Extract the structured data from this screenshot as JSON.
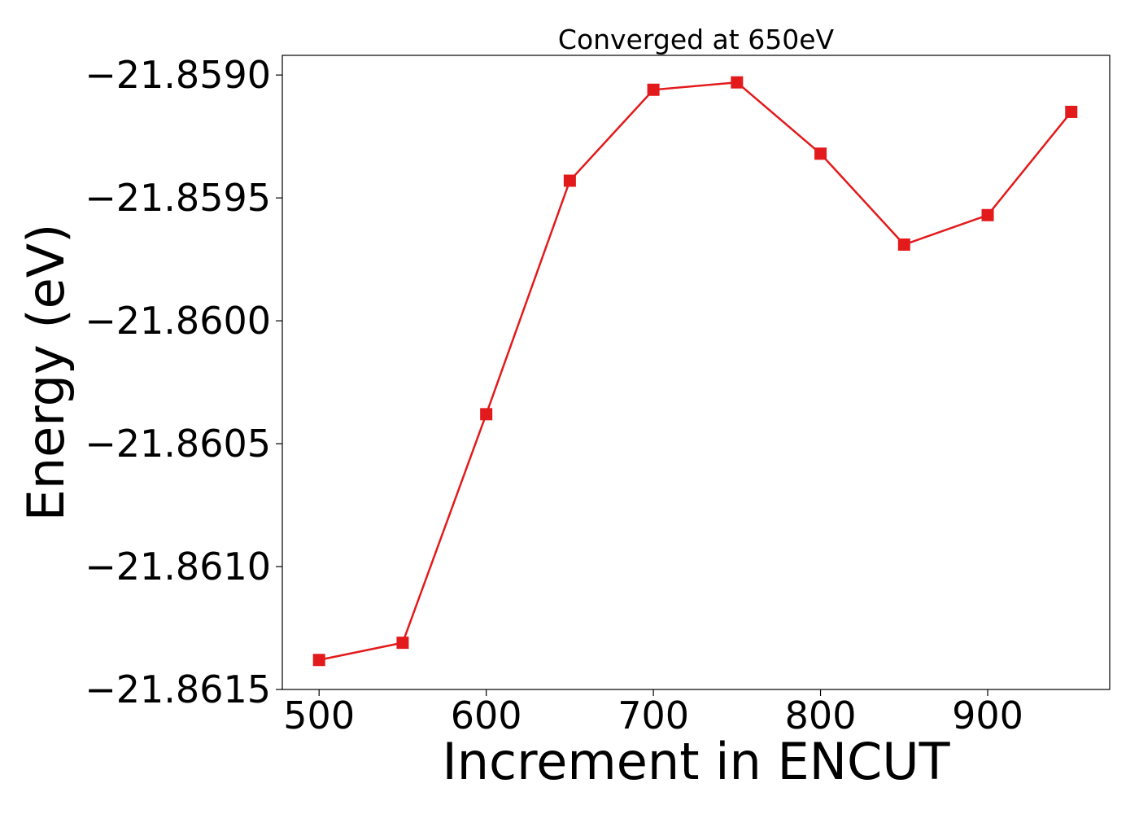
{
  "chart_data": {
    "type": "line",
    "title": "Converged at 650eV",
    "xlabel": "Increment in ENCUT",
    "ylabel": "Energy (eV)",
    "x": [
      500,
      550,
      600,
      650,
      700,
      750,
      800,
      850,
      900,
      950
    ],
    "series": [
      {
        "values": [
          -21.86138,
          -21.86131,
          -21.86038,
          -21.85943,
          -21.85906,
          -21.85903,
          -21.85932,
          -21.85969,
          -21.85957,
          -21.85915
        ]
      }
    ],
    "xlim": [
      478,
      973
    ],
    "ylim": [
      -21.8615,
      -21.85892
    ],
    "xticks": [
      500,
      600,
      700,
      800,
      900
    ],
    "xtick_labels": [
      "500",
      "600",
      "700",
      "800",
      "900"
    ],
    "yticks": [
      -21.859,
      -21.8595,
      -21.86,
      -21.8605,
      -21.861,
      -21.8615
    ],
    "ytick_labels": [
      "−21.8590",
      "−21.8595",
      "−21.8600",
      "−21.8605",
      "−21.8610",
      "−21.8615"
    ],
    "grid": false,
    "legend": "none",
    "line_color": "#e31a1c",
    "marker": "square"
  }
}
